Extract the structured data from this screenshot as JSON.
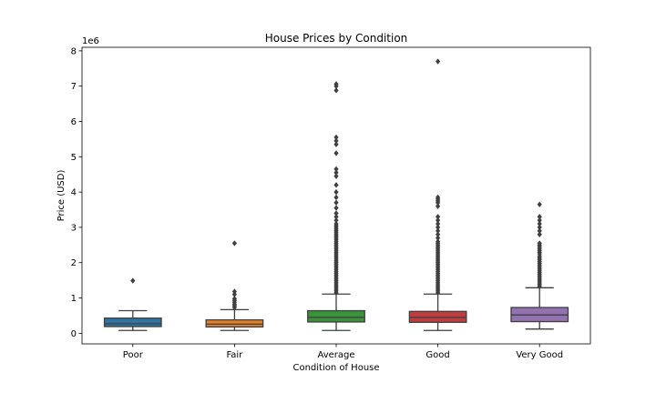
{
  "chart_data": {
    "type": "box",
    "title": "House Prices by Condition",
    "xlabel": "Condition of House",
    "ylabel": "Price (USD)",
    "y_offset_label": "1e6",
    "ylim": [
      -0.3,
      8.1
    ],
    "yticks": [
      0,
      1,
      2,
      3,
      4,
      5,
      6,
      7,
      8
    ],
    "grid": false,
    "categories": [
      "Poor",
      "Fair",
      "Average",
      "Good",
      "Very Good"
    ],
    "colors": [
      "#3274a1",
      "#e1812c",
      "#3a923a",
      "#c03d3e",
      "#9372b2"
    ],
    "boxes": [
      {
        "whislo": 0.08,
        "q1": 0.19,
        "med": 0.27,
        "q3": 0.43,
        "whishi": 0.64,
        "fliers": [
          1.49
        ]
      },
      {
        "whislo": 0.08,
        "q1": 0.18,
        "med": 0.26,
        "q3": 0.38,
        "whishi": 0.67,
        "fliers": [
          0.73,
          0.78,
          0.82,
          0.88,
          0.93,
          0.98,
          1.1,
          1.18,
          2.55
        ]
      },
      {
        "whislo": 0.08,
        "q1": 0.32,
        "med": 0.45,
        "q3": 0.64,
        "whishi": 1.11,
        "fliers": [
          1.15,
          1.2,
          1.25,
          1.3,
          1.35,
          1.4,
          1.45,
          1.5,
          1.55,
          1.6,
          1.65,
          1.7,
          1.75,
          1.8,
          1.85,
          1.9,
          1.95,
          2.0,
          2.05,
          2.1,
          2.15,
          2.2,
          2.25,
          2.3,
          2.35,
          2.4,
          2.45,
          2.5,
          2.55,
          2.6,
          2.65,
          2.7,
          2.75,
          2.8,
          2.85,
          2.9,
          2.95,
          3.0,
          3.05,
          3.1,
          3.2,
          3.3,
          3.4,
          3.55,
          3.7,
          3.85,
          4.0,
          4.2,
          4.45,
          4.55,
          4.65,
          5.1,
          5.35,
          5.45,
          5.55,
          6.88,
          7.0,
          7.06
        ]
      },
      {
        "whislo": 0.08,
        "q1": 0.31,
        "med": 0.45,
        "q3": 0.62,
        "whishi": 1.11,
        "fliers": [
          1.15,
          1.2,
          1.25,
          1.3,
          1.35,
          1.4,
          1.45,
          1.5,
          1.55,
          1.6,
          1.65,
          1.7,
          1.75,
          1.8,
          1.85,
          1.9,
          1.95,
          2.0,
          2.05,
          2.1,
          2.15,
          2.2,
          2.25,
          2.3,
          2.35,
          2.4,
          2.45,
          2.5,
          2.55,
          2.6,
          2.7,
          2.8,
          2.9,
          3.0,
          3.1,
          3.2,
          3.3,
          3.6,
          3.7,
          3.75,
          3.8,
          3.85,
          7.7
        ]
      },
      {
        "whislo": 0.12,
        "q1": 0.33,
        "med": 0.52,
        "q3": 0.73,
        "whishi": 1.29,
        "fliers": [
          1.33,
          1.38,
          1.43,
          1.48,
          1.53,
          1.58,
          1.63,
          1.68,
          1.73,
          1.78,
          1.83,
          1.88,
          1.93,
          1.98,
          2.03,
          2.08,
          2.13,
          2.18,
          2.25,
          2.3,
          2.35,
          2.4,
          2.45,
          2.5,
          2.55,
          2.8,
          2.9,
          3.0,
          3.1,
          3.2,
          3.3,
          3.65
        ]
      }
    ]
  }
}
